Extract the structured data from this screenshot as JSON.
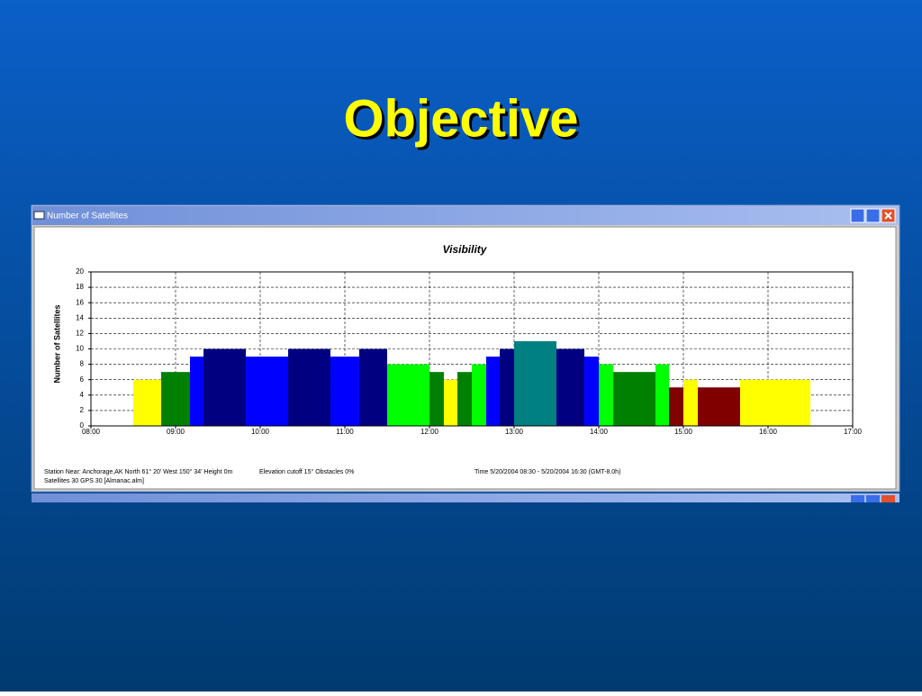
{
  "slide_title": "Objective",
  "window_title": "Number of Satellites",
  "footer": {
    "station": "Station Near: Anchorage,AK   North 61° 20'    West 150° 34'    Height 0m",
    "elevation": "Elevation cutoff 15°   Obstacles 0%",
    "time": "Time 5/20/2004 08:30 -  5/20/2004 16:30 (GMT-8.0h)",
    "satellites": "Satellites 30   GPS 30   [Almanac.alm]"
  },
  "chart_data": {
    "type": "histogram",
    "title": "Visibility",
    "y_label": "Number of Satellites",
    "bins": [
      8.5,
      8.83,
      9.17,
      9.33,
      9.83,
      10.33,
      10.83,
      11.17,
      11.5,
      12,
      12.17,
      12.33,
      12.5,
      12.67,
      12.83,
      13,
      13.5,
      13.83,
      14,
      14.17,
      14.67,
      14.83,
      15,
      15.17,
      15.67,
      16.5
    ],
    "values": [
      6,
      7,
      9,
      10,
      9,
      10,
      9,
      10,
      8,
      7,
      6,
      7,
      8,
      9,
      10,
      11,
      10,
      9,
      8,
      7,
      8,
      5,
      6,
      5,
      6
    ],
    "colors": [
      "#ffff00",
      "#008000",
      "#0000ff",
      "#000080",
      "#0000ff",
      "#000080",
      "#0000ff",
      "#000080",
      "#00ff00",
      "#008000",
      "#ffff00",
      "#008000",
      "#00ff00",
      "#0000ff",
      "#000080",
      "#008080",
      "#000080",
      "#0000ff",
      "#00ff00",
      "#008000",
      "#00ff00",
      "#800000",
      "#ffff00",
      "#800000",
      "#ffff00"
    ],
    "xlim": [
      8,
      17
    ],
    "xticks": [
      {
        "value": 8,
        "label": "08:00"
      },
      {
        "value": 9,
        "label": "09:00"
      },
      {
        "value": 10,
        "label": "10:00"
      },
      {
        "value": 11,
        "label": "11:00"
      },
      {
        "value": 12,
        "label": "12:00"
      },
      {
        "value": 13,
        "label": "13:00"
      },
      {
        "value": 14,
        "label": "14:00"
      },
      {
        "value": 15,
        "label": "15:00"
      },
      {
        "value": 16,
        "label": "16:00"
      },
      {
        "value": 17,
        "label": "17:00"
      }
    ],
    "ylim": [
      0,
      20
    ],
    "yticks": [
      0,
      2,
      4,
      6,
      8,
      10,
      12,
      14,
      16,
      18,
      20
    ],
    "grid": true
  }
}
